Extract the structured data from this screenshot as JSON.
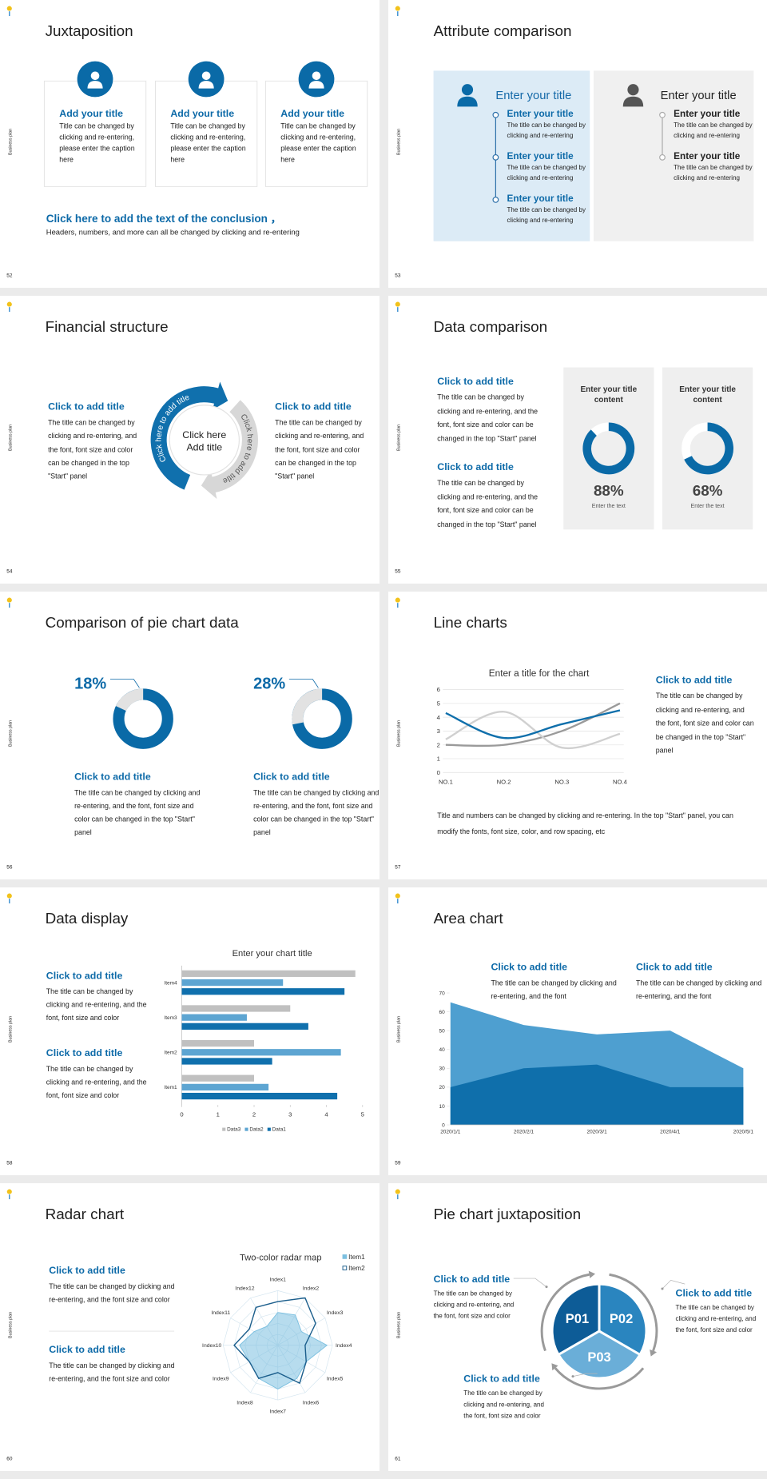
{
  "slides": [
    {
      "page_number": "52",
      "side_label": "Business plan",
      "title": "Juxtaposition",
      "cards": [
        {
          "title": "Add your title",
          "text": "Title can be changed by clicking and re-entering, please enter the caption here"
        },
        {
          "title": "Add your title",
          "text": "Title can be changed by clicking and re-entering, please enter the caption here"
        },
        {
          "title": "Add your title",
          "text": "Title can be changed by clicking and re-entering, please enter the caption here"
        }
      ],
      "conclusion": {
        "title": "Click here to add the text of the conclusion ，",
        "text": "Headers, numbers, and more can all be changed by clicking and re-entering"
      }
    },
    {
      "page_number": "53",
      "side_label": "Business plan",
      "title": "Attribute comparison",
      "panels": [
        {
          "heading": "Enter your title",
          "items": [
            {
              "title": "Enter your title",
              "text": "The title can be changed by clicking and re-entering"
            },
            {
              "title": "Enter your title",
              "text": "The title can be changed by clicking and re-entering"
            },
            {
              "title": "Enter your title",
              "text": "The title can be changed by clicking and re-entering"
            }
          ]
        },
        {
          "heading": "Enter your title",
          "items": [
            {
              "title": "Enter your title",
              "text": "The title can be changed by clicking and re-entering"
            },
            {
              "title": "Enter your title",
              "text": "The title can be changed by clicking and re-entering"
            }
          ]
        }
      ]
    },
    {
      "page_number": "54",
      "side_label": "Business plan",
      "title": "Financial structure",
      "blocks": [
        {
          "title": "Click to add title",
          "text": "The title can be changed by clicking and re-entering, and the font, font size and color can be changed in the top \"Start\" panel"
        },
        {
          "title": "Click to add title",
          "text": "The title can be changed by clicking and re-entering, and the font, font size and color can be changed in the top \"Start\" panel"
        }
      ],
      "cycle": {
        "center_lines": [
          "Click here",
          "Add title"
        ],
        "arcs": [
          "Click here to add title",
          "Click here to add title"
        ]
      }
    },
    {
      "page_number": "55",
      "side_label": "Business plan",
      "title": "Data comparison",
      "blocks": [
        {
          "title": "Click to add title",
          "text": "The title can be changed by clicking and re-entering, and the font, font size and color can be changed in the top \"Start\" panel"
        },
        {
          "title": "Click to add title",
          "text": "The title can be changed by clicking and re-entering, and the font, font size and color can be changed in the top \"Start\" panel"
        }
      ],
      "cards": [
        {
          "title": "Enter your title content",
          "percent": 88,
          "percent_label": "88%",
          "caption": "Enter the text"
        },
        {
          "title": "Enter your title content",
          "percent": 68,
          "percent_label": "68%",
          "caption": "Enter the text"
        }
      ]
    },
    {
      "page_number": "56",
      "side_label": "Business plan",
      "title": "Comparison of pie chart data",
      "charts": [
        {
          "percent": 18,
          "percent_label": "18%",
          "title": "Click to add title",
          "text": "The title can be changed by clicking and re-entering, and the font, font size and color can be changed in the top \"Start\" panel"
        },
        {
          "percent": 28,
          "percent_label": "28%",
          "title": "Click to add title",
          "text": "The title can be changed by clicking and re-entering, and the font, font size and color can be changed in the top \"Start\" panel"
        }
      ]
    },
    {
      "page_number": "57",
      "side_label": "Business plan",
      "title": "Line charts",
      "chart_data": {
        "type": "line",
        "title": "Enter a title for the chart",
        "categories": [
          "NO.1",
          "NO.2",
          "NO.3",
          "NO.4"
        ],
        "series": [
          {
            "color": "#9a9a9a",
            "values": [
              2,
              2,
              3,
              5
            ]
          },
          {
            "color": "#d0d0d0",
            "values": [
              2.4,
              4.4,
              1.8,
              2.8
            ]
          },
          {
            "color": "#0f6fab",
            "values": [
              4.3,
              2.5,
              3.5,
              4.5
            ]
          }
        ],
        "ylim": [
          0,
          6
        ],
        "yticks": [
          0,
          1,
          2,
          3,
          4,
          5,
          6
        ],
        "grid": true
      },
      "block": {
        "title": "Click to add title",
        "text": "The title can be changed by clicking and re-entering, and the font, font size and color can be changed in the top \"Start\" panel"
      },
      "note": "Title and numbers can be changed by clicking and re-entering. In the top \"Start\" panel, you can modify the fonts, font size, color, and row spacing, etc"
    },
    {
      "page_number": "58",
      "side_label": "Business plan",
      "title": "Data display",
      "chart_data": {
        "type": "bar",
        "orientation": "horizontal",
        "title": "Enter your chart title",
        "categories": [
          "Item1",
          "Item2",
          "Item3",
          "Item4"
        ],
        "series": [
          {
            "name": "Data1",
            "color": "#1070ad",
            "values": [
              4.3,
              2.5,
              3.5,
              4.5
            ]
          },
          {
            "name": "Data2",
            "color": "#5da5d2",
            "values": [
              2.4,
              4.4,
              1.8,
              2.8
            ]
          },
          {
            "name": "Data3",
            "color": "#c0c0c0",
            "values": [
              2,
              2,
              3,
              4.8
            ]
          }
        ],
        "xlim": [
          0,
          5
        ],
        "xticks": [
          0,
          1,
          2,
          3,
          4,
          5
        ],
        "legend": "bottom"
      },
      "blocks": [
        {
          "title": "Click to add title",
          "text": "The title can be changed by clicking and re-entering, and the font, font size and color"
        },
        {
          "title": "Click to add title",
          "text": "The title can be changed by clicking and re-entering, and the font, font size and color"
        }
      ]
    },
    {
      "page_number": "59",
      "side_label": "Business plan",
      "title": "Area chart",
      "chart_data": {
        "type": "area",
        "categories": [
          "2020/1/1",
          "2020/2/1",
          "2020/3/1",
          "2020/4/1",
          "2020/5/1"
        ],
        "series": [
          {
            "color": "#4e9fd0",
            "values": [
              65,
              53,
              48,
              50,
              30
            ]
          },
          {
            "color": "#0f6fab",
            "values": [
              20,
              30,
              32,
              20,
              20
            ]
          }
        ],
        "ylim": [
          0,
          70
        ],
        "yticks": [
          0,
          10,
          20,
          30,
          40,
          50,
          60,
          70
        ]
      },
      "blocks": [
        {
          "title": "Click to add title",
          "text": "The title can be changed by clicking and re-entering, and the font"
        },
        {
          "title": "Click to add title",
          "text": "The title can be changed by clicking and re-entering, and the font"
        }
      ]
    },
    {
      "page_number": "60",
      "side_label": "Business plan",
      "title": "Radar chart",
      "chart_data": {
        "type": "radar",
        "title": "Two-color radar map",
        "categories": [
          "Index1",
          "Index2",
          "Index3",
          "Index4",
          "Index5",
          "Index6",
          "Index7",
          "Index8",
          "Index9",
          "Index10",
          "Index11",
          "Index12"
        ],
        "series": [
          {
            "name": "Item1",
            "color": "#7cc0e0",
            "filled": true,
            "values": [
              3,
              3.2,
              2.5,
              4.5,
              3,
              3.5,
              4,
              3.5,
              3,
              3.5,
              2.5,
              2
            ]
          },
          {
            "name": "Item2",
            "color": "#1b5e8c",
            "filled": false,
            "values": [
              4,
              5,
              4,
              2.5,
              3,
              4,
              2.5,
              3.5,
              3,
              4,
              3,
              4
            ]
          }
        ],
        "rlim": [
          0,
          5
        ],
        "legend": "top-right"
      },
      "blocks": [
        {
          "title": "Click to add title",
          "text": "The title can be changed by clicking and re-entering, and the font size and color"
        },
        {
          "title": "Click to add title",
          "text": "The title can be changed by clicking and re-entering, and the font size and color"
        }
      ]
    },
    {
      "page_number": "61",
      "side_label": "Business plan",
      "title": "Pie chart juxtaposition",
      "segments": [
        "P01",
        "P02",
        "P03"
      ],
      "blocks": [
        {
          "title": "Click to add title",
          "text": "The title can be changed by clicking and re-entering, and the font, font size and color"
        },
        {
          "title": "Click to add title",
          "text": "The title can be changed by clicking and re-entering, and the font, font size and color"
        },
        {
          "title": "Click to add title",
          "text": "The title can be changed by clicking and re-entering, and the font, font size and color"
        }
      ]
    }
  ]
}
